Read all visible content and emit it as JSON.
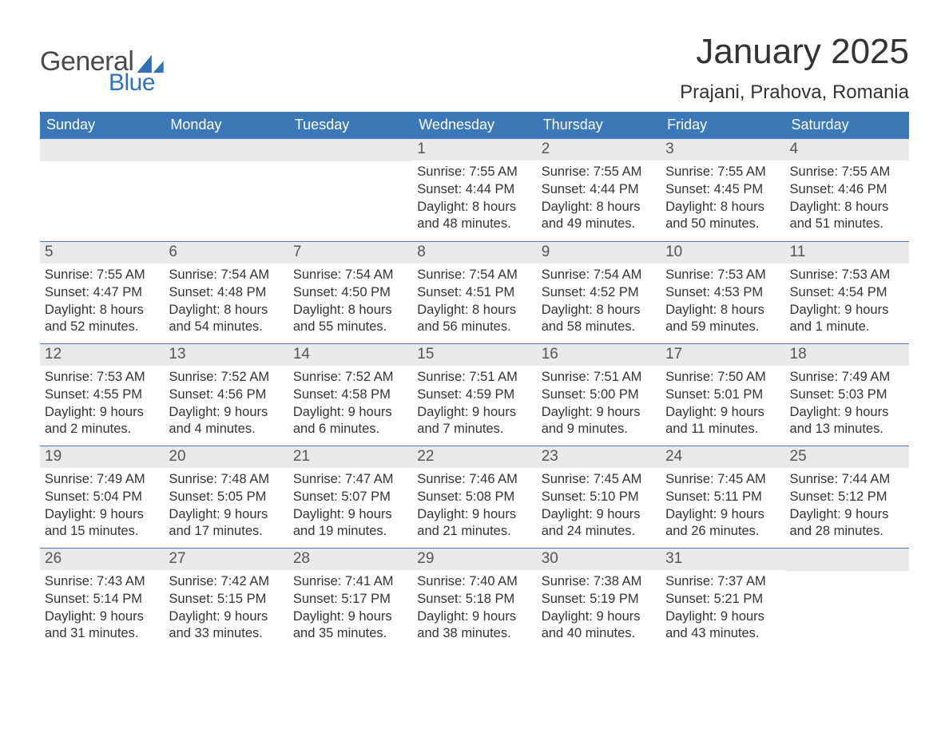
{
  "logo": {
    "main": "General",
    "sub": "Blue"
  },
  "title": "January 2025",
  "location": "Prajani, Prahova, Romania",
  "colors": {
    "header_bg": "#3a78b8",
    "header_text": "#ffffff",
    "day_strip_bg": "#e9e9e9",
    "border": "#3a78b8",
    "brand_blue": "#2f72b6",
    "text": "#333333"
  },
  "weekdays": [
    "Sunday",
    "Monday",
    "Tuesday",
    "Wednesday",
    "Thursday",
    "Friday",
    "Saturday"
  ],
  "weeks": [
    [
      {
        "blank": true
      },
      {
        "blank": true
      },
      {
        "blank": true
      },
      {
        "n": "1",
        "sunrise": "Sunrise: 7:55 AM",
        "sunset": "Sunset: 4:44 PM",
        "d1": "Daylight: 8 hours",
        "d2": "and 48 minutes."
      },
      {
        "n": "2",
        "sunrise": "Sunrise: 7:55 AM",
        "sunset": "Sunset: 4:44 PM",
        "d1": "Daylight: 8 hours",
        "d2": "and 49 minutes."
      },
      {
        "n": "3",
        "sunrise": "Sunrise: 7:55 AM",
        "sunset": "Sunset: 4:45 PM",
        "d1": "Daylight: 8 hours",
        "d2": "and 50 minutes."
      },
      {
        "n": "4",
        "sunrise": "Sunrise: 7:55 AM",
        "sunset": "Sunset: 4:46 PM",
        "d1": "Daylight: 8 hours",
        "d2": "and 51 minutes."
      }
    ],
    [
      {
        "n": "5",
        "sunrise": "Sunrise: 7:55 AM",
        "sunset": "Sunset: 4:47 PM",
        "d1": "Daylight: 8 hours",
        "d2": "and 52 minutes."
      },
      {
        "n": "6",
        "sunrise": "Sunrise: 7:54 AM",
        "sunset": "Sunset: 4:48 PM",
        "d1": "Daylight: 8 hours",
        "d2": "and 54 minutes."
      },
      {
        "n": "7",
        "sunrise": "Sunrise: 7:54 AM",
        "sunset": "Sunset: 4:50 PM",
        "d1": "Daylight: 8 hours",
        "d2": "and 55 minutes."
      },
      {
        "n": "8",
        "sunrise": "Sunrise: 7:54 AM",
        "sunset": "Sunset: 4:51 PM",
        "d1": "Daylight: 8 hours",
        "d2": "and 56 minutes."
      },
      {
        "n": "9",
        "sunrise": "Sunrise: 7:54 AM",
        "sunset": "Sunset: 4:52 PM",
        "d1": "Daylight: 8 hours",
        "d2": "and 58 minutes."
      },
      {
        "n": "10",
        "sunrise": "Sunrise: 7:53 AM",
        "sunset": "Sunset: 4:53 PM",
        "d1": "Daylight: 8 hours",
        "d2": "and 59 minutes."
      },
      {
        "n": "11",
        "sunrise": "Sunrise: 7:53 AM",
        "sunset": "Sunset: 4:54 PM",
        "d1": "Daylight: 9 hours",
        "d2": "and 1 minute."
      }
    ],
    [
      {
        "n": "12",
        "sunrise": "Sunrise: 7:53 AM",
        "sunset": "Sunset: 4:55 PM",
        "d1": "Daylight: 9 hours",
        "d2": "and 2 minutes."
      },
      {
        "n": "13",
        "sunrise": "Sunrise: 7:52 AM",
        "sunset": "Sunset: 4:56 PM",
        "d1": "Daylight: 9 hours",
        "d2": "and 4 minutes."
      },
      {
        "n": "14",
        "sunrise": "Sunrise: 7:52 AM",
        "sunset": "Sunset: 4:58 PM",
        "d1": "Daylight: 9 hours",
        "d2": "and 6 minutes."
      },
      {
        "n": "15",
        "sunrise": "Sunrise: 7:51 AM",
        "sunset": "Sunset: 4:59 PM",
        "d1": "Daylight: 9 hours",
        "d2": "and 7 minutes."
      },
      {
        "n": "16",
        "sunrise": "Sunrise: 7:51 AM",
        "sunset": "Sunset: 5:00 PM",
        "d1": "Daylight: 9 hours",
        "d2": "and 9 minutes."
      },
      {
        "n": "17",
        "sunrise": "Sunrise: 7:50 AM",
        "sunset": "Sunset: 5:01 PM",
        "d1": "Daylight: 9 hours",
        "d2": "and 11 minutes."
      },
      {
        "n": "18",
        "sunrise": "Sunrise: 7:49 AM",
        "sunset": "Sunset: 5:03 PM",
        "d1": "Daylight: 9 hours",
        "d2": "and 13 minutes."
      }
    ],
    [
      {
        "n": "19",
        "sunrise": "Sunrise: 7:49 AM",
        "sunset": "Sunset: 5:04 PM",
        "d1": "Daylight: 9 hours",
        "d2": "and 15 minutes."
      },
      {
        "n": "20",
        "sunrise": "Sunrise: 7:48 AM",
        "sunset": "Sunset: 5:05 PM",
        "d1": "Daylight: 9 hours",
        "d2": "and 17 minutes."
      },
      {
        "n": "21",
        "sunrise": "Sunrise: 7:47 AM",
        "sunset": "Sunset: 5:07 PM",
        "d1": "Daylight: 9 hours",
        "d2": "and 19 minutes."
      },
      {
        "n": "22",
        "sunrise": "Sunrise: 7:46 AM",
        "sunset": "Sunset: 5:08 PM",
        "d1": "Daylight: 9 hours",
        "d2": "and 21 minutes."
      },
      {
        "n": "23",
        "sunrise": "Sunrise: 7:45 AM",
        "sunset": "Sunset: 5:10 PM",
        "d1": "Daylight: 9 hours",
        "d2": "and 24 minutes."
      },
      {
        "n": "24",
        "sunrise": "Sunrise: 7:45 AM",
        "sunset": "Sunset: 5:11 PM",
        "d1": "Daylight: 9 hours",
        "d2": "and 26 minutes."
      },
      {
        "n": "25",
        "sunrise": "Sunrise: 7:44 AM",
        "sunset": "Sunset: 5:12 PM",
        "d1": "Daylight: 9 hours",
        "d2": "and 28 minutes."
      }
    ],
    [
      {
        "n": "26",
        "sunrise": "Sunrise: 7:43 AM",
        "sunset": "Sunset: 5:14 PM",
        "d1": "Daylight: 9 hours",
        "d2": "and 31 minutes."
      },
      {
        "n": "27",
        "sunrise": "Sunrise: 7:42 AM",
        "sunset": "Sunset: 5:15 PM",
        "d1": "Daylight: 9 hours",
        "d2": "and 33 minutes."
      },
      {
        "n": "28",
        "sunrise": "Sunrise: 7:41 AM",
        "sunset": "Sunset: 5:17 PM",
        "d1": "Daylight: 9 hours",
        "d2": "and 35 minutes."
      },
      {
        "n": "29",
        "sunrise": "Sunrise: 7:40 AM",
        "sunset": "Sunset: 5:18 PM",
        "d1": "Daylight: 9 hours",
        "d2": "and 38 minutes."
      },
      {
        "n": "30",
        "sunrise": "Sunrise: 7:38 AM",
        "sunset": "Sunset: 5:19 PM",
        "d1": "Daylight: 9 hours",
        "d2": "and 40 minutes."
      },
      {
        "n": "31",
        "sunrise": "Sunrise: 7:37 AM",
        "sunset": "Sunset: 5:21 PM",
        "d1": "Daylight: 9 hours",
        "d2": "and 43 minutes."
      },
      {
        "blank": true
      }
    ]
  ]
}
